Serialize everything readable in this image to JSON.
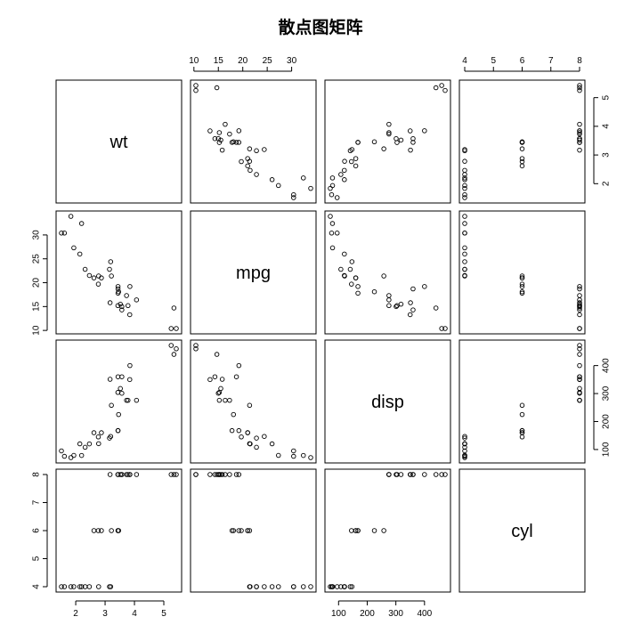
{
  "title": "散点图矩阵",
  "chart_data": {
    "type": "scatter",
    "title": "散点图矩阵",
    "variables": [
      "wt",
      "mpg",
      "disp",
      "cyl"
    ],
    "ranges": {
      "wt": [
        1.513,
        5.424
      ],
      "mpg": [
        10.4,
        33.9
      ],
      "disp": [
        71.1,
        472.0
      ],
      "cyl": [
        4,
        8
      ]
    },
    "ticks": {
      "wt": [
        2,
        3,
        4,
        5
      ],
      "mpg": [
        10,
        15,
        20,
        25,
        30
      ],
      "disp": [
        100,
        200,
        300,
        400
      ],
      "cyl": [
        4,
        5,
        6,
        7,
        8
      ]
    },
    "tick_labels": {
      "wt": [
        "2",
        "3",
        "4",
        "5"
      ],
      "mpg": [
        "10",
        "15",
        "20",
        "25",
        "30"
      ],
      "disp": [
        "100",
        "200",
        "300",
        "400"
      ],
      "cyl": [
        "4",
        "5",
        "6",
        "7",
        "8"
      ]
    },
    "points": [
      {
        "wt": 2.62,
        "mpg": 21.0,
        "disp": 160.0,
        "cyl": 6
      },
      {
        "wt": 2.875,
        "mpg": 21.0,
        "disp": 160.0,
        "cyl": 6
      },
      {
        "wt": 2.32,
        "mpg": 22.8,
        "disp": 108.0,
        "cyl": 4
      },
      {
        "wt": 3.215,
        "mpg": 21.4,
        "disp": 258.0,
        "cyl": 6
      },
      {
        "wt": 3.44,
        "mpg": 18.7,
        "disp": 360.0,
        "cyl": 8
      },
      {
        "wt": 3.46,
        "mpg": 18.1,
        "disp": 225.0,
        "cyl": 6
      },
      {
        "wt": 3.57,
        "mpg": 14.3,
        "disp": 360.0,
        "cyl": 8
      },
      {
        "wt": 3.19,
        "mpg": 24.4,
        "disp": 146.7,
        "cyl": 4
      },
      {
        "wt": 3.15,
        "mpg": 22.8,
        "disp": 140.8,
        "cyl": 4
      },
      {
        "wt": 3.44,
        "mpg": 19.2,
        "disp": 167.6,
        "cyl": 6
      },
      {
        "wt": 3.44,
        "mpg": 17.8,
        "disp": 167.6,
        "cyl": 6
      },
      {
        "wt": 4.07,
        "mpg": 16.4,
        "disp": 275.8,
        "cyl": 8
      },
      {
        "wt": 3.73,
        "mpg": 17.3,
        "disp": 275.8,
        "cyl": 8
      },
      {
        "wt": 3.78,
        "mpg": 15.2,
        "disp": 275.8,
        "cyl": 8
      },
      {
        "wt": 5.25,
        "mpg": 10.4,
        "disp": 472.0,
        "cyl": 8
      },
      {
        "wt": 5.424,
        "mpg": 10.4,
        "disp": 460.0,
        "cyl": 8
      },
      {
        "wt": 5.345,
        "mpg": 14.7,
        "disp": 440.0,
        "cyl": 8
      },
      {
        "wt": 2.2,
        "mpg": 32.4,
        "disp": 78.7,
        "cyl": 4
      },
      {
        "wt": 1.615,
        "mpg": 30.4,
        "disp": 75.7,
        "cyl": 4
      },
      {
        "wt": 1.835,
        "mpg": 33.9,
        "disp": 71.1,
        "cyl": 4
      },
      {
        "wt": 2.465,
        "mpg": 21.5,
        "disp": 120.1,
        "cyl": 4
      },
      {
        "wt": 3.52,
        "mpg": 15.5,
        "disp": 318.0,
        "cyl": 8
      },
      {
        "wt": 3.435,
        "mpg": 15.2,
        "disp": 304.0,
        "cyl": 8
      },
      {
        "wt": 3.84,
        "mpg": 13.3,
        "disp": 350.0,
        "cyl": 8
      },
      {
        "wt": 3.845,
        "mpg": 19.2,
        "disp": 400.0,
        "cyl": 8
      },
      {
        "wt": 1.935,
        "mpg": 27.3,
        "disp": 79.0,
        "cyl": 4
      },
      {
        "wt": 2.14,
        "mpg": 26.0,
        "disp": 120.3,
        "cyl": 4
      },
      {
        "wt": 1.513,
        "mpg": 30.4,
        "disp": 95.1,
        "cyl": 4
      },
      {
        "wt": 3.17,
        "mpg": 15.8,
        "disp": 351.0,
        "cyl": 8
      },
      {
        "wt": 2.77,
        "mpg": 19.7,
        "disp": 145.0,
        "cyl": 6
      },
      {
        "wt": 3.57,
        "mpg": 15.0,
        "disp": 301.0,
        "cyl": 8
      },
      {
        "wt": 2.78,
        "mpg": 21.4,
        "disp": 121.0,
        "cyl": 4
      }
    ]
  }
}
